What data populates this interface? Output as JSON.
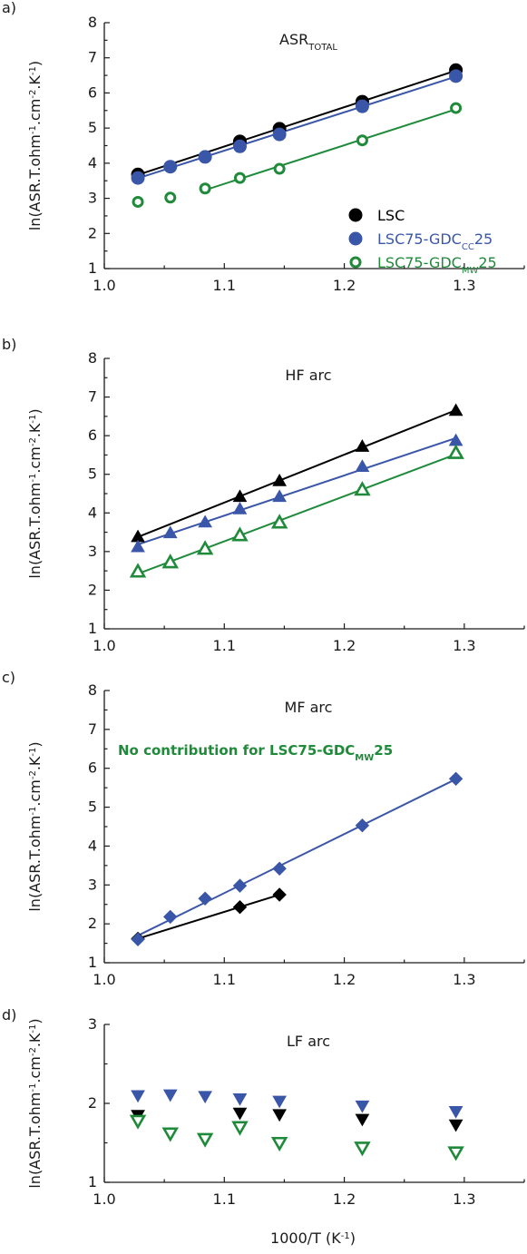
{
  "colors": {
    "LSC": "#000000",
    "CC": "#3a56a8",
    "MW": "#1f8a3a",
    "axis": "#1a1a1a"
  },
  "x_axis_title": "1000/T (K",
  "x_axis_title_sup": "-1",
  "x_axis_title_end": ")",
  "y_axis_title": {
    "main": "ln(ASR.T.ohm",
    "sup1": "-1",
    "mid1": ".cm",
    "sup2": "-2",
    "mid2": ".K",
    "sup3": "-1",
    "end": ")"
  },
  "chart_data": [
    {
      "panel": "a)",
      "type": "scatter",
      "title": "ASR",
      "title_sub": "TOTAL",
      "xlim": [
        1.0,
        1.35
      ],
      "ylim": [
        1,
        8
      ],
      "xticks": [
        "1.0",
        "1.1",
        "1.2",
        "1.3"
      ],
      "yticks": [
        "1",
        "2",
        "3",
        "4",
        "5",
        "6",
        "7",
        "8"
      ],
      "legend": [
        {
          "text": "LSC",
          "sub": "",
          "after": "",
          "marker": "circle-filled",
          "color_key": "LSC"
        },
        {
          "text": "LSC75-GDC",
          "sub": "CC",
          "after": "25",
          "marker": "circle-filled",
          "color_key": "CC"
        },
        {
          "text": "LSC75-GDC",
          "sub": "MW",
          "after": "25",
          "marker": "circle-open",
          "color_key": "MW"
        }
      ],
      "series": [
        {
          "name": "LSC",
          "marker": "circle-filled",
          "color_key": "LSC",
          "x": [
            1.028,
            1.113,
            1.146,
            1.215,
            1.293
          ],
          "y": [
            3.68,
            4.62,
            4.98,
            5.75,
            6.65
          ],
          "fit": true
        },
        {
          "name": "LSC75-GDCCC25",
          "marker": "circle-filled",
          "color_key": "CC",
          "x": [
            1.028,
            1.055,
            1.084,
            1.113,
            1.146,
            1.215,
            1.293
          ],
          "y": [
            3.58,
            3.9,
            4.18,
            4.48,
            4.82,
            5.62,
            6.48
          ],
          "fit": true
        },
        {
          "name": "LSC75-GDCMW25",
          "marker": "circle-open",
          "color_key": "MW",
          "x": [
            1.028,
            1.055,
            1.084,
            1.113,
            1.146,
            1.215,
            1.293
          ],
          "y": [
            2.9,
            3.02,
            3.28,
            3.58,
            3.84,
            4.65,
            5.57
          ],
          "fit": true,
          "fit_from": 1.084
        }
      ]
    },
    {
      "panel": "b)",
      "type": "scatter",
      "title": "HF arc",
      "xlim": [
        1.0,
        1.35
      ],
      "ylim": [
        1,
        8
      ],
      "xticks": [
        "1.0",
        "1.1",
        "1.2",
        "1.3"
      ],
      "yticks": [
        "1",
        "2",
        "3",
        "4",
        "5",
        "6",
        "7",
        "8"
      ],
      "series": [
        {
          "name": "LSC",
          "marker": "tri-up-filled",
          "color_key": "LSC",
          "x": [
            1.028,
            1.113,
            1.146,
            1.215,
            1.293
          ],
          "y": [
            3.38,
            4.42,
            4.83,
            5.72,
            6.65
          ],
          "fit": true
        },
        {
          "name": "LSC75-GDCCC25",
          "marker": "tri-up-filled",
          "color_key": "CC",
          "x": [
            1.028,
            1.055,
            1.084,
            1.113,
            1.146,
            1.215,
            1.293
          ],
          "y": [
            3.12,
            3.48,
            3.76,
            4.1,
            4.42,
            5.2,
            5.87
          ],
          "fit": true
        },
        {
          "name": "LSC75-GDCMW25",
          "marker": "tri-up-open",
          "color_key": "MW",
          "x": [
            1.028,
            1.055,
            1.084,
            1.113,
            1.146,
            1.215,
            1.293
          ],
          "y": [
            2.48,
            2.72,
            3.07,
            3.42,
            3.75,
            4.6,
            5.55
          ],
          "fit": true
        }
      ]
    },
    {
      "panel": "c)",
      "type": "scatter",
      "title": "MF arc",
      "xlim": [
        1.0,
        1.35
      ],
      "ylim": [
        1,
        8
      ],
      "xticks": [
        "1.0",
        "1.1",
        "1.2",
        "1.3"
      ],
      "yticks": [
        "1",
        "2",
        "3",
        "4",
        "5",
        "6",
        "7",
        "8"
      ],
      "note": {
        "text": "No contribution for LSC75-GDC",
        "sub": "MW",
        "after": "25",
        "color_key": "MW"
      },
      "series": [
        {
          "name": "LSC",
          "marker": "diamond-filled",
          "color_key": "LSC",
          "x": [
            1.028,
            1.113,
            1.146
          ],
          "y": [
            1.62,
            2.43,
            2.75
          ],
          "fit": true
        },
        {
          "name": "LSC75-GDCCC25",
          "marker": "diamond-filled",
          "color_key": "CC",
          "x": [
            1.028,
            1.055,
            1.084,
            1.113,
            1.146,
            1.215,
            1.293
          ],
          "y": [
            1.6,
            2.18,
            2.65,
            2.98,
            3.42,
            4.53,
            5.73
          ],
          "fit": true
        }
      ]
    },
    {
      "panel": "d)",
      "type": "scatter",
      "title": "LF arc",
      "xlim": [
        1.0,
        1.35
      ],
      "ylim": [
        1,
        3
      ],
      "xticks": [
        "1.0",
        "1.1",
        "1.2",
        "1.3"
      ],
      "yticks": [
        "1",
        "2",
        "3"
      ],
      "series": [
        {
          "name": "LSC",
          "marker": "tri-down-filled",
          "color_key": "LSC",
          "x": [
            1.028,
            1.113,
            1.146,
            1.215,
            1.293
          ],
          "y": [
            1.85,
            1.88,
            1.86,
            1.8,
            1.73
          ],
          "fit": false
        },
        {
          "name": "LSC75-GDCCC25",
          "marker": "tri-down-filled",
          "color_key": "CC",
          "x": [
            1.028,
            1.055,
            1.084,
            1.113,
            1.146,
            1.215,
            1.293
          ],
          "y": [
            2.1,
            2.11,
            2.09,
            2.06,
            2.03,
            1.97,
            1.9
          ],
          "fit": false
        },
        {
          "name": "LSC75-GDCMW25",
          "marker": "tri-down-open",
          "color_key": "MW",
          "x": [
            1.028,
            1.055,
            1.084,
            1.113,
            1.146,
            1.215,
            1.293
          ],
          "y": [
            1.78,
            1.62,
            1.55,
            1.7,
            1.5,
            1.44,
            1.38
          ],
          "fit": false
        }
      ]
    }
  ]
}
